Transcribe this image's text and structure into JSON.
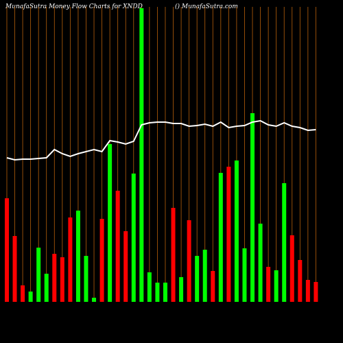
{
  "chart_data": {
    "type": "bar",
    "title": "MunafaSutra  Money Flow  Charts for XNDD",
    "subtitle": "() MunafaSutra.com",
    "categories": [
      null,
      null,
      null,
      null,
      null,
      null,
      null,
      null,
      null,
      null,
      null,
      null,
      null,
      null,
      null,
      null,
      null,
      null,
      null,
      null,
      null,
      null,
      null,
      null,
      null,
      null,
      null,
      null,
      null,
      null,
      null,
      null,
      null,
      null,
      null,
      null,
      null,
      null,
      null,
      null
    ],
    "series": [
      {
        "type": "bar",
        "values": [
          151,
          96,
          24,
          15,
          79,
          41,
          70,
          65,
          123,
          133,
          67,
          6,
          121,
          230,
          162,
          103,
          187,
          428,
          43,
          28,
          28,
          137,
          36,
          119,
          67,
          76,
          45,
          188,
          197,
          206,
          78,
          275,
          114,
          51,
          46,
          173,
          97,
          61,
          32,
          29
        ],
        "colors": [
          "red",
          "red",
          "red",
          "lime",
          "lime",
          "lime",
          "red",
          "red",
          "red",
          "lime",
          "lime",
          "lime",
          "red",
          "lime",
          "red",
          "red",
          "lime",
          "lime",
          "lime",
          "lime",
          "lime",
          "red",
          "lime",
          "red",
          "lime",
          "lime",
          "red",
          "lime",
          "red",
          "lime",
          "lime",
          "lime",
          "lime",
          "red",
          "lime",
          "lime",
          "red",
          "red",
          "red",
          "red"
        ]
      },
      {
        "type": "line",
        "color": "#ffffff",
        "values": [
          210,
          207,
          208,
          208,
          209,
          210,
          222,
          216,
          212,
          216,
          219,
          222,
          219,
          235,
          233,
          230,
          234,
          258,
          261,
          262,
          262,
          260,
          260,
          256,
          257,
          259,
          256,
          262,
          254,
          256,
          257,
          262,
          264,
          258,
          256,
          261,
          256,
          254,
          250,
          251
        ]
      }
    ],
    "ylim": [
      0,
      430
    ],
    "grid_color": "#b8600b"
  }
}
